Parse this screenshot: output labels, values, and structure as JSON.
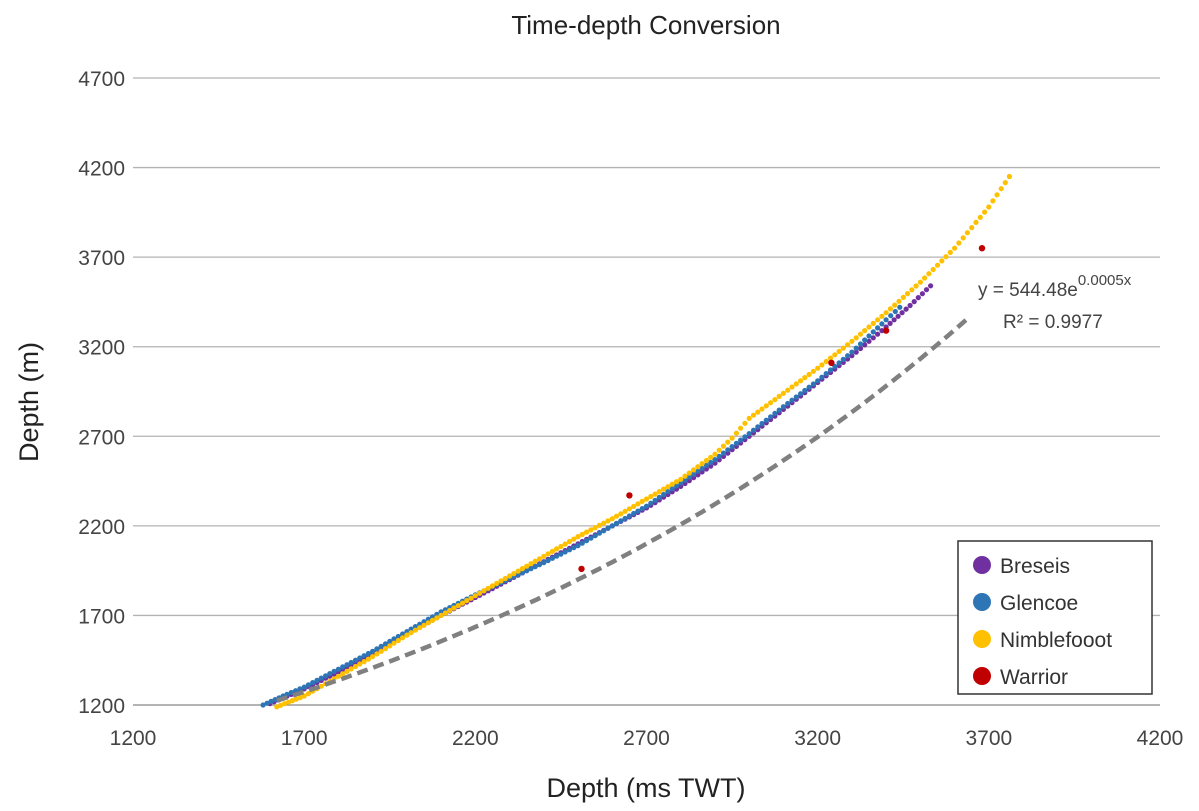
{
  "chart_data": {
    "type": "scatter",
    "title": "Time-depth Conversion",
    "xlabel": "Depth (ms TWT)",
    "ylabel": "Depth (m)",
    "xlim": [
      1200,
      4200
    ],
    "ylim": [
      1200,
      4700
    ],
    "x_ticks": [
      1200,
      1700,
      2200,
      2700,
      3200,
      3700,
      4200
    ],
    "y_ticks": [
      1200,
      1700,
      2200,
      2700,
      3200,
      3700,
      4200,
      4700
    ],
    "grid": "horizontal",
    "legend_position": "bottom-right",
    "series": [
      {
        "name": "Breseis",
        "color": "#7030a0",
        "points": [
          [
            1600,
            1208
          ],
          [
            1700,
            1290
          ],
          [
            1800,
            1385
          ],
          [
            1900,
            1490
          ],
          [
            2000,
            1595
          ],
          [
            2100,
            1700
          ],
          [
            2200,
            1800
          ],
          [
            2300,
            1900
          ],
          [
            2400,
            2000
          ],
          [
            2500,
            2100
          ],
          [
            2600,
            2200
          ],
          [
            2700,
            2300
          ],
          [
            2800,
            2420
          ],
          [
            2900,
            2550
          ],
          [
            3000,
            2700
          ],
          [
            3100,
            2850
          ],
          [
            3200,
            3000
          ],
          [
            3300,
            3150
          ],
          [
            3400,
            3310
          ],
          [
            3470,
            3430
          ],
          [
            3530,
            3540
          ]
        ]
      },
      {
        "name": "Glencoe",
        "color": "#2e75b6",
        "points": [
          [
            1580,
            1200
          ],
          [
            1650,
            1260
          ],
          [
            1700,
            1300
          ],
          [
            1800,
            1400
          ],
          [
            1900,
            1500
          ],
          [
            2000,
            1610
          ],
          [
            2100,
            1720
          ],
          [
            2200,
            1815
          ],
          [
            2300,
            1905
          ],
          [
            2400,
            1995
          ],
          [
            2500,
            2090
          ],
          [
            2600,
            2200
          ],
          [
            2700,
            2310
          ],
          [
            2800,
            2440
          ],
          [
            2900,
            2570
          ],
          [
            3000,
            2715
          ],
          [
            3100,
            2865
          ],
          [
            3200,
            3010
          ],
          [
            3300,
            3170
          ],
          [
            3400,
            3350
          ],
          [
            3440,
            3420
          ]
        ]
      },
      {
        "name": "Nimblefooot",
        "color": "#ffc000",
        "points": [
          [
            1620,
            1190
          ],
          [
            1700,
            1250
          ],
          [
            1800,
            1360
          ],
          [
            1900,
            1470
          ],
          [
            2000,
            1590
          ],
          [
            2100,
            1700
          ],
          [
            2200,
            1810
          ],
          [
            2300,
            1920
          ],
          [
            2400,
            2030
          ],
          [
            2500,
            2140
          ],
          [
            2600,
            2240
          ],
          [
            2700,
            2350
          ],
          [
            2800,
            2460
          ],
          [
            2900,
            2600
          ],
          [
            2950,
            2690
          ],
          [
            3000,
            2800
          ],
          [
            3100,
            2940
          ],
          [
            3200,
            3080
          ],
          [
            3300,
            3230
          ],
          [
            3400,
            3390
          ],
          [
            3500,
            3560
          ],
          [
            3600,
            3750
          ],
          [
            3700,
            3980
          ],
          [
            3760,
            4150
          ]
        ]
      },
      {
        "name": "Warrior",
        "color": "#c00000",
        "points": [
          [
            2510,
            1960
          ],
          [
            2650,
            2370
          ],
          [
            3240,
            3110
          ],
          [
            3400,
            3290
          ],
          [
            3680,
            3750
          ]
        ]
      }
    ],
    "trendline": {
      "type": "exponential",
      "a": 544.48,
      "b": 0.0005,
      "x_range": [
        1620,
        3640
      ],
      "color": "#808080",
      "equation_base": "y = 544.48e",
      "equation_exp": "0.0005x",
      "r_squared": "R² = 0.9977"
    }
  }
}
